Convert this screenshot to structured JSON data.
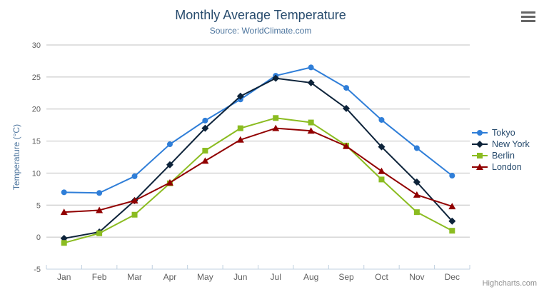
{
  "header": {
    "title": "Monthly Average Temperature",
    "subtitle": "Source: WorldClimate.com"
  },
  "chart_data": {
    "type": "line",
    "title": "Monthly Average Temperature",
    "subtitle": "Source: WorldClimate.com",
    "categories": [
      "Jan",
      "Feb",
      "Mar",
      "Apr",
      "May",
      "Jun",
      "Jul",
      "Aug",
      "Sep",
      "Oct",
      "Nov",
      "Dec"
    ],
    "series": [
      {
        "name": "Tokyo",
        "color": "#2f7ed8",
        "marker": "circle",
        "values": [
          7.0,
          6.9,
          9.5,
          14.5,
          18.2,
          21.5,
          25.2,
          26.5,
          23.3,
          18.3,
          13.9,
          9.6
        ]
      },
      {
        "name": "New York",
        "color": "#0d233a",
        "marker": "diamond",
        "values": [
          -0.2,
          0.8,
          5.7,
          11.3,
          17.0,
          22.0,
          24.8,
          24.1,
          20.1,
          14.1,
          8.6,
          2.5
        ]
      },
      {
        "name": "Berlin",
        "color": "#8bbc21",
        "marker": "square",
        "values": [
          -0.9,
          0.6,
          3.5,
          8.4,
          13.5,
          17.0,
          18.6,
          17.9,
          14.3,
          9.0,
          3.9,
          1.0
        ]
      },
      {
        "name": "London",
        "color": "#910000",
        "marker": "triangle",
        "values": [
          3.9,
          4.2,
          5.7,
          8.5,
          11.9,
          15.2,
          17.0,
          16.6,
          14.2,
          10.3,
          6.6,
          4.8
        ]
      }
    ],
    "xlabel": "",
    "ylabel": "Temperature (°C)",
    "ylim": [
      -5,
      30
    ],
    "ytick_step": 5,
    "yticks": [
      -5,
      0,
      5,
      10,
      15,
      20,
      25,
      30
    ],
    "grid": true,
    "legend_position": "right"
  },
  "icons": {
    "export_menu": "hamburger"
  },
  "credits": {
    "label": "Highcharts.com"
  },
  "colors": {
    "title": "#274b6d",
    "subtitle": "#4d759e",
    "axis_title": "#4d759e",
    "axis_label": "#606060",
    "grid": "#c0c0c0",
    "axis_line": "#c0d0e0",
    "tick": "#c0d0e0",
    "legend_text": "#274b6d",
    "credits": "#909090",
    "background": "#ffffff"
  }
}
